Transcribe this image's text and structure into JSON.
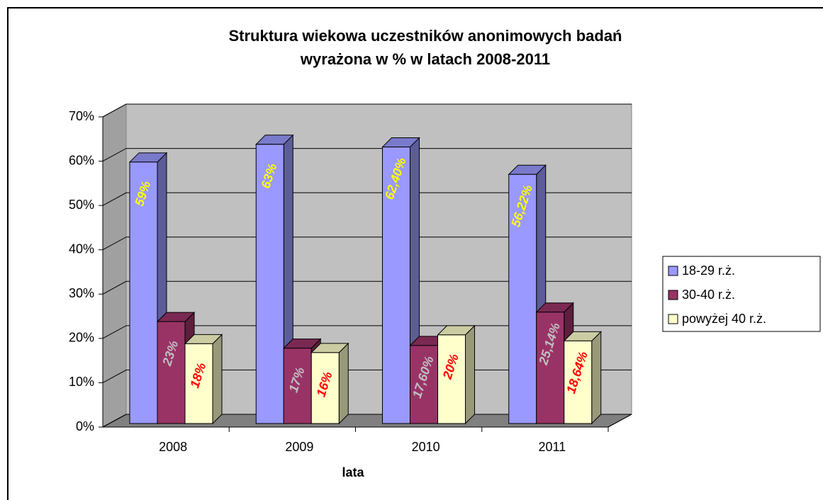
{
  "chart_data": {
    "type": "bar3d",
    "title": "Struktura wiekowa uczestników anonimowych badań\nwyrażona w % w latach 2008-2011",
    "xlabel": "lata",
    "categories": [
      "2008",
      "2009",
      "2010",
      "2011"
    ],
    "series": [
      {
        "name": "18-29 r.ż.",
        "color": "#9999ff",
        "label_color": "#ffff00",
        "values": [
          59,
          63,
          62.4,
          56.22
        ],
        "value_labels": [
          "59%",
          "63%",
          "62,40%",
          "56,22%"
        ]
      },
      {
        "name": "30-40 r.ż.",
        "color": "#993366",
        "label_color": "#c0c0c0",
        "values": [
          23,
          17,
          17.6,
          25.14
        ],
        "value_labels": [
          "23%",
          "17%",
          "17,60%",
          "25,14%"
        ]
      },
      {
        "name": "powyżej 40 r.ż.",
        "color": "#ffffcc",
        "label_color": "#ff0000",
        "values": [
          18,
          16,
          20,
          18.64
        ],
        "value_labels": [
          "18%",
          "16%",
          "20%",
          "18,64%"
        ]
      }
    ],
    "ylim": [
      0,
      70
    ],
    "yticks": [
      {
        "value": 0,
        "label": "0%"
      },
      {
        "value": 10,
        "label": "10%"
      },
      {
        "value": 20,
        "label": "20%"
      },
      {
        "value": 30,
        "label": "30%"
      },
      {
        "value": 40,
        "label": "40%"
      },
      {
        "value": 50,
        "label": "50%"
      },
      {
        "value": 60,
        "label": "60%"
      },
      {
        "value": 70,
        "label": "70%"
      }
    ],
    "grid": true,
    "legend": "right"
  }
}
